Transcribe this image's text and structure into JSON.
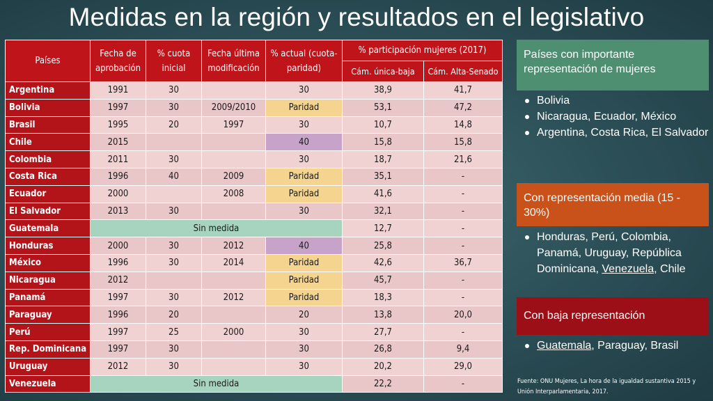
{
  "title": "Medidas en la región y resultados en el legislativo",
  "table": {
    "headers": {
      "paises": "Países",
      "fecha_aprobacion": "Fecha de aprobación",
      "cuota_inicial": "% cuota inicial",
      "fecha_modificacion": "Fecha última modificación",
      "actual": "% actual (cuota-paridad)",
      "participacion": "% participación mujeres (2017)",
      "cam_unica": "Cám. única-baja",
      "cam_alta": "Cám. Alta-Senado"
    },
    "rows": [
      {
        "pais": "Argentina",
        "aprob": "1991",
        "inicial": "30",
        "modif": "",
        "actual": "30",
        "baja": "38,9",
        "alta": "41,7",
        "style": ""
      },
      {
        "pais": "Bolivia",
        "aprob": "1997",
        "inicial": "30",
        "modif": "2009/2010",
        "actual": "Paridad",
        "baja": "53,1",
        "alta": "47,2",
        "style": "paridad"
      },
      {
        "pais": "Brasil",
        "aprob": "1995",
        "inicial": "20",
        "modif": "1997",
        "actual": "30",
        "baja": "10,7",
        "alta": "14,8",
        "style": ""
      },
      {
        "pais": "Chile",
        "aprob": "2015",
        "inicial": "",
        "modif": "",
        "actual": "40",
        "baja": "15,8",
        "alta": "15,8",
        "style": "purple"
      },
      {
        "pais": "Colombia",
        "aprob": "2011",
        "inicial": "30",
        "modif": "",
        "actual": "30",
        "baja": "18,7",
        "alta": "21,6",
        "style": ""
      },
      {
        "pais": "Costa Rica",
        "aprob": "1996",
        "inicial": "40",
        "modif": "2009",
        "actual": "Paridad",
        "baja": "35,1",
        "alta": "-",
        "style": "paridad"
      },
      {
        "pais": "Ecuador",
        "aprob": "2000",
        "inicial": "",
        "modif": "2008",
        "actual": "Paridad",
        "baja": "41,6",
        "alta": "-",
        "style": "paridad"
      },
      {
        "pais": "El Salvador",
        "aprob": "2013",
        "inicial": "30",
        "modif": "",
        "actual": "30",
        "baja": "32,1",
        "alta": "-",
        "style": ""
      },
      {
        "pais": "Guatemala",
        "sin": "Sin medida",
        "baja": "12,7",
        "alta": "-"
      },
      {
        "pais": "Honduras",
        "aprob": "2000",
        "inicial": "30",
        "modif": "2012",
        "actual": "40",
        "baja": "25,8",
        "alta": "-",
        "style": "purple"
      },
      {
        "pais": "México",
        "aprob": "1996",
        "inicial": "30",
        "modif": "2014",
        "actual": "Paridad",
        "baja": "42,6",
        "alta": "36,7",
        "style": "paridad"
      },
      {
        "pais": "Nicaragua",
        "aprob": "2012",
        "inicial": "",
        "modif": "",
        "actual": "Paridad",
        "baja": "45,7",
        "alta": "-",
        "style": "paridad"
      },
      {
        "pais": "Panamá",
        "aprob": "1997",
        "inicial": "30",
        "modif": "2012",
        "actual": "Paridad",
        "baja": "18,3",
        "alta": "-",
        "style": "paridad"
      },
      {
        "pais": "Paraguay",
        "aprob": "1996",
        "inicial": "20",
        "modif": "",
        "actual": "20",
        "baja": "13,8",
        "alta": "20,0",
        "style": ""
      },
      {
        "pais": "Perú",
        "aprob": "1997",
        "inicial": "25",
        "modif": "2000",
        "actual": "30",
        "baja": "27,7",
        "alta": "-",
        "style": ""
      },
      {
        "pais": "Rep. Dominicana",
        "aprob": "1997",
        "inicial": "30",
        "modif": "",
        "actual": "30",
        "baja": "26,8",
        "alta": "9,4",
        "style": ""
      },
      {
        "pais": "Uruguay",
        "aprob": "2012",
        "inicial": "30",
        "modif": "",
        "actual": "30",
        "baja": "20,2",
        "alta": "29,0",
        "style": ""
      },
      {
        "pais": "Venezuela",
        "sin": "Sin medida",
        "baja": "22,2",
        "alta": "-"
      }
    ]
  },
  "sidebar": {
    "alta_title": "Países con importante representación de mujeres",
    "alta_items": [
      "Bolivia",
      "Nicaragua, Ecuador, México",
      "Argentina, Costa Rica, El Salvador"
    ],
    "media_title": "Con representación media (15 - 30%)",
    "media_item_a": "Honduras, Perú, Colombia, Panamá, Uruguay, República Dominicana,",
    "media_item_venezuela": "Venezuela",
    "media_item_b": ", Chile",
    "baja_title": "Con baja representación",
    "baja_item_guatemala": "Guatemala",
    "baja_item_b": ", Paraguay, Brasil"
  },
  "source": "Fuente: ONU Mujeres, La hora de la igualdad sustantiva 2015 y Unión Interparlamentaria, 2017."
}
